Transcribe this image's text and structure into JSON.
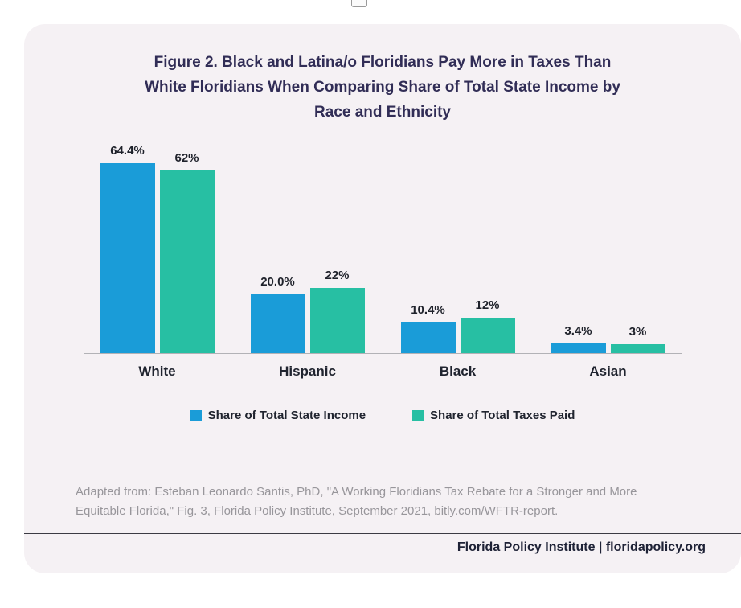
{
  "title": {
    "lines": [
      "Figure 2. Black and Latina/o Floridians Pay More in Taxes Than",
      "White Floridians When Comparing Share of Total State Income by",
      "Race and Ethnicity"
    ]
  },
  "chart_data": {
    "type": "bar",
    "title": "Figure 2. Black and Latina/o Floridians Pay More in Taxes Than White Floridians When Comparing Share of Total State Income by Race and Ethnicity",
    "categories": [
      "White",
      "Hispanic",
      "Black",
      "Asian"
    ],
    "series": [
      {
        "name": "Share of Total State Income",
        "color": "#1a9cd8",
        "values": [
          64.4,
          20.0,
          10.4,
          3.4
        ],
        "value_labels": [
          "64.4%",
          "20.0%",
          "10.4%",
          "3.4%"
        ]
      },
      {
        "name": "Share of Total Taxes Paid",
        "color": "#27bfa3",
        "values": [
          62,
          22,
          12,
          3
        ],
        "value_labels": [
          "62%",
          "22%",
          "12%",
          "3%"
        ]
      }
    ],
    "ylim": [
      0,
      70
    ],
    "unit": "percent",
    "grid": false,
    "legend_position": "bottom"
  },
  "source": {
    "lines": [
      "Adapted from: Esteban Leonardo Santis, PhD, \"A Working Floridians Tax Rebate for a Stronger and More",
      "Equitable Florida,\" Fig. 3, Florida Policy Institute, September 2021, bitly.com/WFTR-report."
    ]
  },
  "footer": {
    "text": "Florida Policy Institute | floridapolicy.org"
  }
}
